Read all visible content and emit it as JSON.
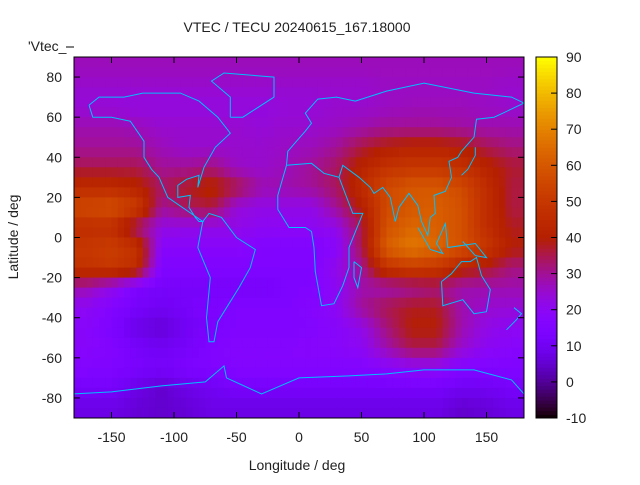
{
  "chart_data": {
    "type": "heatmap",
    "title": "VTEC / TECU 20240615_167.18000",
    "xlabel": "Longitude / deg",
    "ylabel": "Latitude / deg",
    "key_label": "'Vtec_",
    "xlim": [
      -180,
      180
    ],
    "ylim": [
      -90,
      90
    ],
    "xticks": [
      -150,
      -100,
      -50,
      0,
      50,
      100,
      150
    ],
    "yticks": [
      -80,
      -60,
      -40,
      -20,
      0,
      20,
      40,
      60,
      80
    ],
    "cbrange": [
      -10,
      90
    ],
    "cbticks": [
      -10,
      0,
      10,
      20,
      30,
      40,
      50,
      60,
      70,
      80,
      90
    ],
    "palette": "gnuplot default (rgbformulae 7,5,15)",
    "coastline_color": "#00c0ff",
    "grid_lon_centers": [
      -170,
      -150,
      -130,
      -110,
      -90,
      -70,
      -50,
      -30,
      -10,
      10,
      30,
      50,
      70,
      90,
      110,
      130,
      150,
      170
    ],
    "grid_lat_centers": [
      85,
      75,
      65,
      55,
      45,
      35,
      25,
      15,
      5,
      -5,
      -15,
      -25,
      -35,
      -45,
      -55,
      -65,
      -75,
      -85
    ],
    "values": [
      [
        27,
        27,
        27,
        27,
        27,
        27,
        27,
        27,
        27,
        27,
        27,
        27,
        27,
        27,
        27,
        27,
        27,
        27
      ],
      [
        25,
        25,
        25,
        25,
        25,
        25,
        25,
        25,
        25,
        25,
        25,
        25,
        26,
        26,
        26,
        26,
        26,
        25
      ],
      [
        24,
        24,
        23,
        23,
        23,
        23,
        23,
        23,
        24,
        24,
        25,
        25,
        26,
        27,
        27,
        27,
        26,
        25
      ],
      [
        28,
        28,
        27,
        25,
        25,
        25,
        25,
        24,
        25,
        25,
        26,
        28,
        30,
        30,
        30,
        29,
        28,
        28
      ],
      [
        30,
        30,
        30,
        27,
        25,
        25,
        25,
        25,
        26,
        27,
        30,
        36,
        40,
        42,
        42,
        40,
        35,
        32
      ],
      [
        35,
        35,
        35,
        30,
        30,
        32,
        26,
        25,
        27,
        30,
        34,
        42,
        48,
        50,
        50,
        48,
        42,
        37
      ],
      [
        45,
        45,
        42,
        34,
        38,
        42,
        36,
        28,
        28,
        30,
        34,
        45,
        56,
        60,
        60,
        56,
        46,
        36
      ],
      [
        56,
        58,
        52,
        30,
        34,
        36,
        24,
        22,
        22,
        22,
        30,
        40,
        56,
        60,
        62,
        58,
        46,
        36
      ],
      [
        46,
        46,
        32,
        23,
        22,
        22,
        22,
        20,
        20,
        20,
        22,
        35,
        58,
        64,
        62,
        58,
        46,
        38
      ],
      [
        50,
        52,
        48,
        18,
        18,
        18,
        18,
        16,
        15,
        15,
        18,
        35,
        62,
        68,
        64,
        58,
        50,
        40
      ],
      [
        48,
        50,
        46,
        15,
        15,
        15,
        15,
        15,
        15,
        15,
        22,
        30,
        48,
        52,
        50,
        42,
        38,
        32
      ],
      [
        28,
        22,
        14,
        12,
        12,
        12,
        12,
        12,
        14,
        15,
        20,
        28,
        28,
        30,
        32,
        28,
        28,
        28
      ],
      [
        20,
        16,
        12,
        10,
        12,
        14,
        15,
        15,
        15,
        17,
        20,
        30,
        35,
        38,
        38,
        28,
        25,
        24
      ],
      [
        18,
        14,
        8,
        6,
        10,
        13,
        15,
        15,
        15,
        16,
        18,
        22,
        32,
        40,
        40,
        28,
        22,
        20
      ],
      [
        18,
        16,
        12,
        10,
        12,
        15,
        17,
        17,
        17,
        18,
        18,
        20,
        28,
        35,
        35,
        25,
        20,
        18
      ],
      [
        16,
        15,
        13,
        12,
        14,
        15,
        16,
        16,
        16,
        16,
        16,
        16,
        18,
        20,
        20,
        16,
        15,
        15
      ],
      [
        12,
        12,
        8,
        5,
        8,
        10,
        12,
        12,
        12,
        12,
        12,
        12,
        12,
        12,
        12,
        10,
        10,
        12
      ],
      [
        8,
        8,
        6,
        5,
        6,
        8,
        8,
        8,
        8,
        8,
        8,
        8,
        8,
        8,
        8,
        5,
        6,
        8
      ]
    ]
  }
}
